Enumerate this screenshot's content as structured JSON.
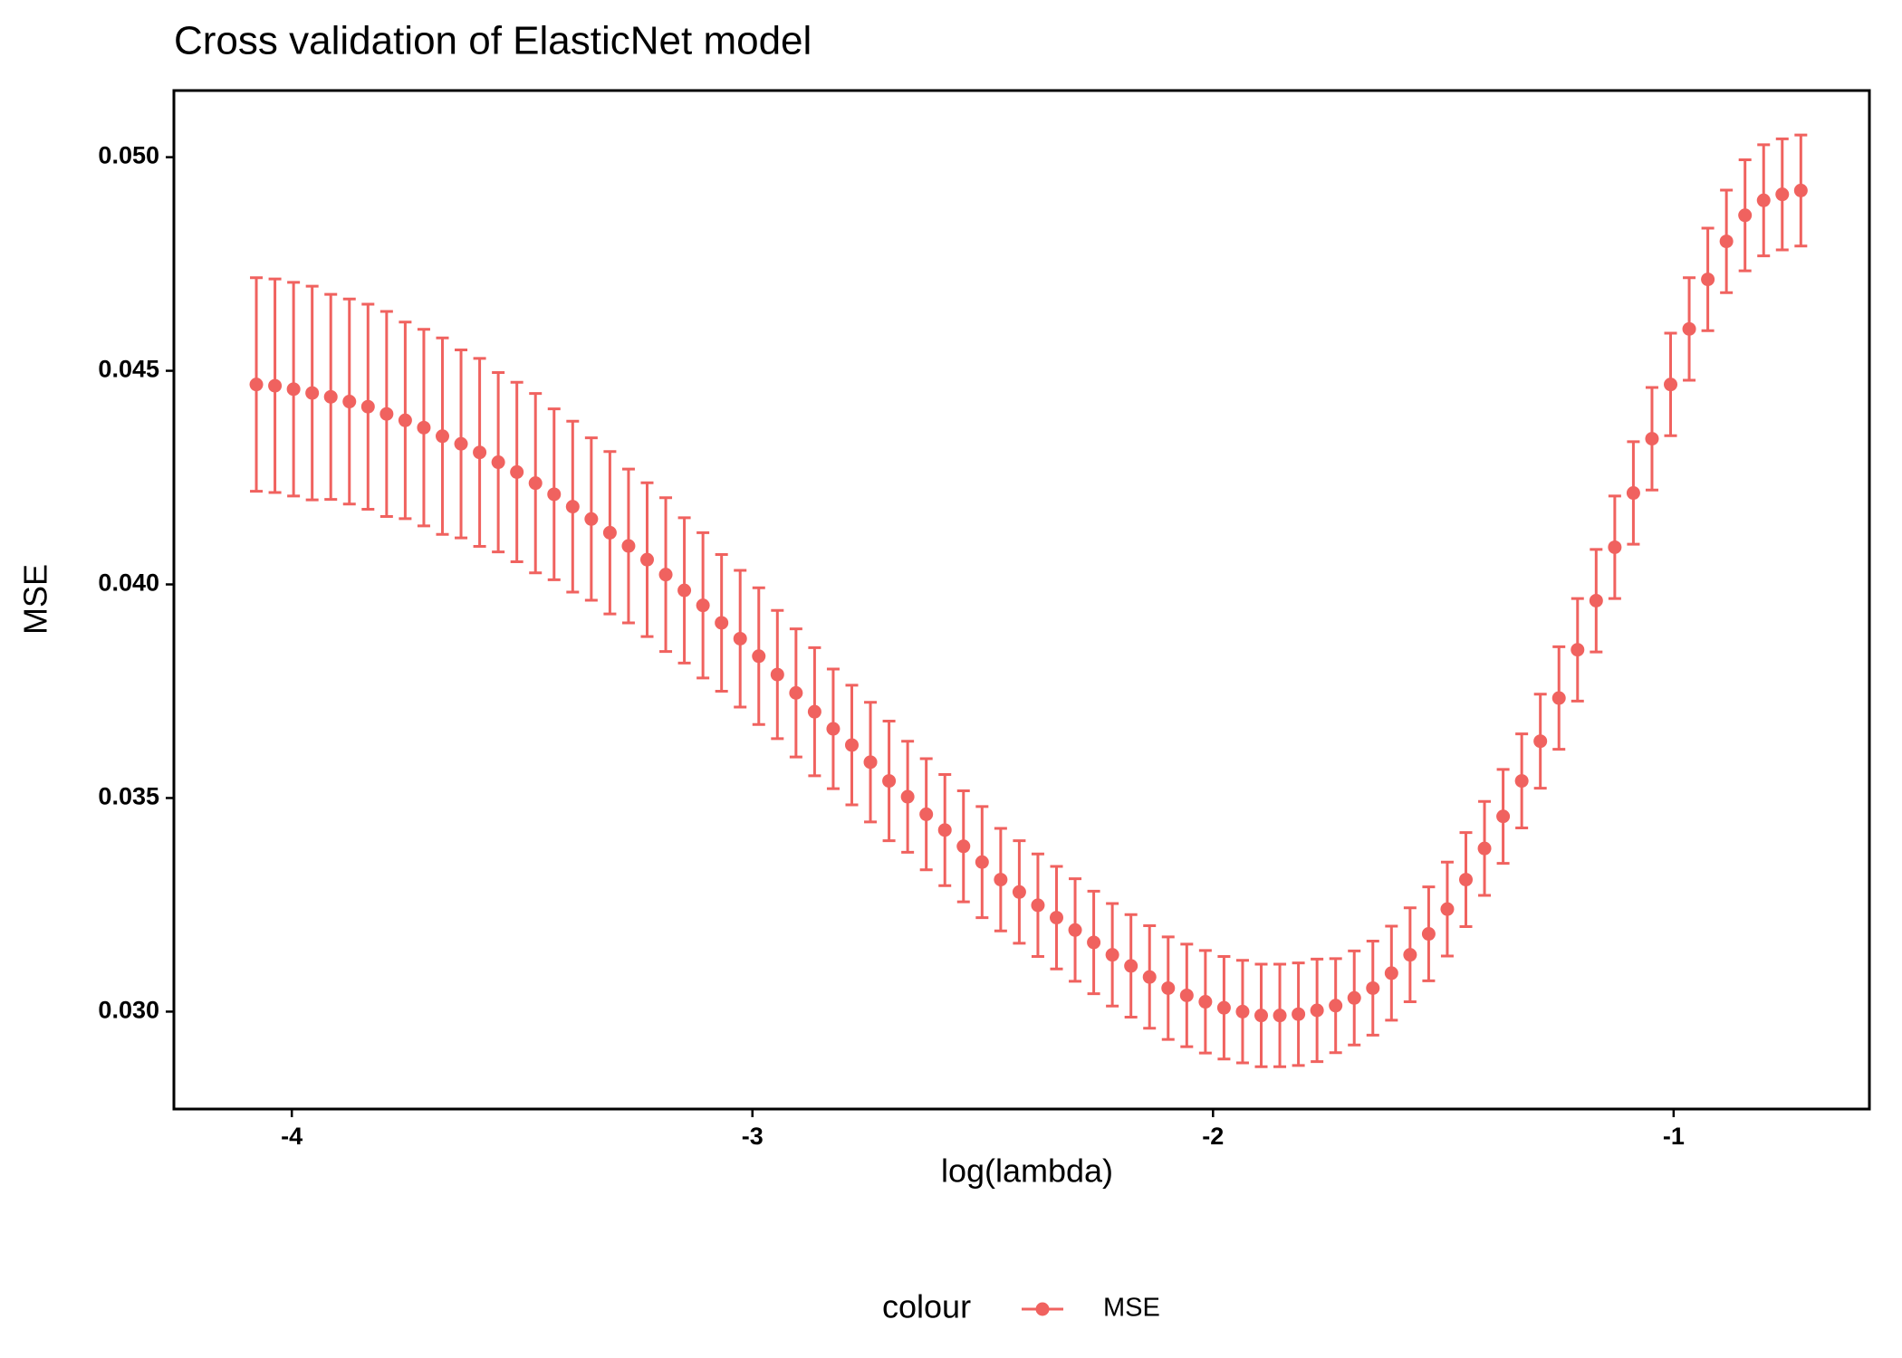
{
  "chart_data": {
    "type": "scatter",
    "title": "Cross validation of ElasticNet model",
    "x_label": "log(lambda)",
    "y_label": "MSE",
    "legend_title": "colour",
    "legend_position": "bottom",
    "grid": false,
    "xlim": [
      -4.256,
      -0.575
    ],
    "ylim": [
      0.02772,
      0.05156
    ],
    "xticks": [
      -4,
      -3,
      -2,
      -1
    ],
    "yticks": [
      {
        "value": 0.03,
        "label": "0.030"
      },
      0.035,
      {
        "value": 0.04,
        "label": "0.040"
      },
      0.045,
      {
        "value": 0.05,
        "label": "0.050"
      }
    ],
    "x": [
      -4.077,
      -4.0366,
      -3.9962,
      -3.9558,
      -3.9154,
      -3.875,
      -3.8346,
      -3.7942,
      -3.7538,
      -3.7134,
      -3.673,
      -3.6326,
      -3.5922,
      -3.5518,
      -3.5114,
      -3.471,
      -3.4306,
      -3.3902,
      -3.3498,
      -3.3094,
      -3.269,
      -3.2286,
      -3.1882,
      -3.1478,
      -3.1074,
      -3.067,
      -3.0266,
      -2.9862,
      -2.9458,
      -2.9054,
      -2.865,
      -2.8246,
      -2.7842,
      -2.7438,
      -2.7034,
      -2.663,
      -2.6226,
      -2.5822,
      -2.5418,
      -2.5014,
      -2.461,
      -2.4206,
      -2.3802,
      -2.3398,
      -2.2994,
      -2.259,
      -2.2186,
      -2.1782,
      -2.1378,
      -2.0974,
      -2.057,
      -2.0166,
      -1.9762,
      -1.9358,
      -1.8954,
      -1.855,
      -1.8146,
      -1.7742,
      -1.7338,
      -1.6934,
      -1.653,
      -1.6126,
      -1.5722,
      -1.5318,
      -1.4914,
      -1.451,
      -1.4106,
      -1.3702,
      -1.3298,
      -1.2894,
      -1.249,
      -1.2086,
      -1.1682,
      -1.1278,
      -1.0874,
      -1.047,
      -1.0066,
      -0.9662,
      -0.9258,
      -0.8854,
      -0.845,
      -0.8046,
      -0.7642,
      -0.7238
    ],
    "series": [
      {
        "name": "MSE",
        "color": "#F0625F",
        "values": [
          0.04468,
          0.04465,
          0.04457,
          0.04448,
          0.04439,
          0.04428,
          0.04416,
          0.04399,
          0.04384,
          0.04367,
          0.04347,
          0.04329,
          0.04309,
          0.04286,
          0.04263,
          0.04237,
          0.04211,
          0.04182,
          0.04153,
          0.04121,
          0.0409,
          0.04058,
          0.04023,
          0.03986,
          0.03951,
          0.0391,
          0.03873,
          0.03832,
          0.03789,
          0.03746,
          0.03702,
          0.03662,
          0.03624,
          0.03584,
          0.0354,
          0.03503,
          0.03462,
          0.03425,
          0.03387,
          0.0335,
          0.03309,
          0.0328,
          0.03249,
          0.0322,
          0.03191,
          0.03162,
          0.03133,
          0.03107,
          0.03081,
          0.03055,
          0.03038,
          0.03023,
          0.03009,
          0.03,
          0.02991,
          0.02991,
          0.02994,
          0.03003,
          0.03014,
          0.03032,
          0.03055,
          0.0309,
          0.03133,
          0.03182,
          0.0324,
          0.03309,
          0.03382,
          0.03457,
          0.0354,
          0.03633,
          0.03734,
          0.03847,
          0.03962,
          0.04087,
          0.04214,
          0.04341,
          0.04468,
          0.04598,
          0.04714,
          0.04803,
          0.04864,
          0.04899,
          0.04913,
          0.04922
        ],
        "errors": [
          0.0025,
          0.0025,
          0.0025,
          0.0025,
          0.0024,
          0.0024,
          0.0024,
          0.0024,
          0.0023,
          0.0023,
          0.0023,
          0.0022,
          0.0022,
          0.0021,
          0.0021,
          0.0021,
          0.002,
          0.002,
          0.0019,
          0.0019,
          0.0018,
          0.0018,
          0.0018,
          0.0017,
          0.0017,
          0.0016,
          0.0016,
          0.0016,
          0.0015,
          0.0015,
          0.0015,
          0.0014,
          0.0014,
          0.0014,
          0.0014,
          0.0013,
          0.0013,
          0.0013,
          0.0013,
          0.0013,
          0.0012,
          0.0012,
          0.0012,
          0.0012,
          0.0012,
          0.0012,
          0.0012,
          0.0012,
          0.0012,
          0.0012,
          0.0012,
          0.0012,
          0.0012,
          0.0012,
          0.0012,
          0.0012,
          0.0012,
          0.0012,
          0.0011,
          0.0011,
          0.0011,
          0.0011,
          0.0011,
          0.0011,
          0.0011,
          0.0011,
          0.0011,
          0.0011,
          0.0011,
          0.0011,
          0.0012,
          0.0012,
          0.0012,
          0.0012,
          0.0012,
          0.0012,
          0.0012,
          0.0012,
          0.0012,
          0.0012,
          0.0013,
          0.0013,
          0.0013,
          0.0013
        ]
      }
    ]
  }
}
